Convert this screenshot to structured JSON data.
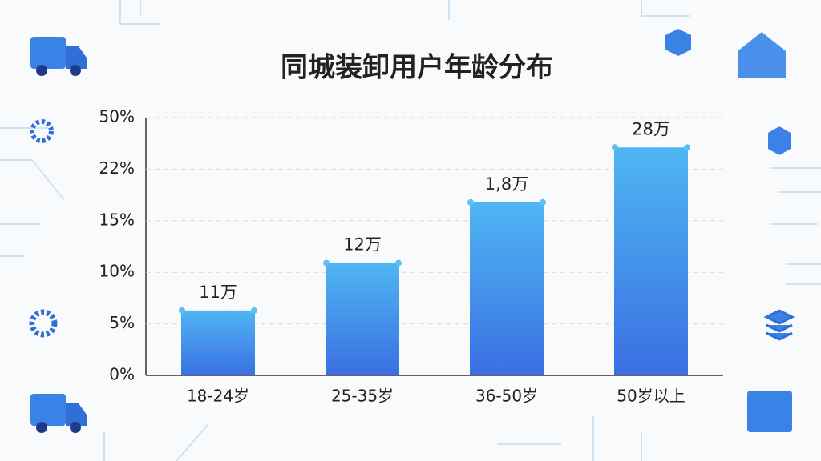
{
  "chart_data": {
    "type": "bar",
    "title": "同城装卸用户年龄分布",
    "categories": [
      "18-24岁",
      "25-35岁",
      "36-50岁",
      "50岁以上"
    ],
    "values": [
      6.3,
      10.9,
      17.5,
      33.8
    ],
    "bar_labels": [
      "11万",
      "12万",
      "1,8万",
      "28万"
    ],
    "color": "#3d86ec",
    "ylim": [
      0,
      50
    ],
    "yticks": [
      {
        "value": 0,
        "label": "0%"
      },
      {
        "value": 5,
        "label": "5%"
      },
      {
        "value": 10,
        "label": "10%"
      },
      {
        "value": 15,
        "label": "15%"
      },
      {
        "value": 22,
        "label": "22%"
      },
      {
        "value": 50,
        "label": "50%"
      }
    ],
    "y_scale": "even-ticks",
    "grid": true
  }
}
